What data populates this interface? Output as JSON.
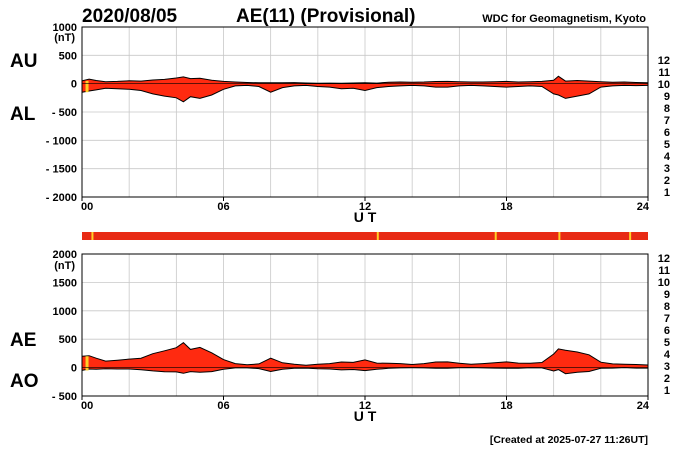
{
  "header": {
    "date": "2020/08/05",
    "title": "AE(11) (Provisional)",
    "organization": "WDC for Geomagnetism, Kyoto"
  },
  "footer": {
    "created": "[Created at 2025-07-27 11:26UT]"
  },
  "colors": {
    "fill": "#ff2a10",
    "outline": "#000000",
    "grid": "#c8c8c8",
    "marker": "#ffd028"
  },
  "legend_scale": {
    "labels": [
      "12",
      "11",
      "10",
      "9",
      "8",
      "7",
      "6",
      "5",
      "4",
      "3",
      "2",
      "1"
    ],
    "colors": [
      "#ff1e78",
      "#e0101e",
      "#ff9a00",
      "#e8e800",
      "#b4f000",
      "#28d2c8",
      "#0a8cff",
      "#2828e0",
      "#a028d2",
      "#000000",
      "#777777",
      "#cccccc"
    ]
  },
  "chart_data": [
    {
      "type": "area",
      "panel": "AU/AL",
      "labels": {
        "upper": "AU",
        "lower": "AL",
        "unit": "(nT)"
      },
      "xlabel": "U T",
      "xticks": [
        "00",
        "06",
        "12",
        "18",
        "24"
      ],
      "xlim": [
        0,
        24
      ],
      "ylim": [
        -2000,
        1000
      ],
      "yticks": [
        1000,
        500,
        0,
        -500,
        -1000,
        -1500,
        -2000
      ],
      "ytick_labels": [
        "1000",
        "500",
        "0",
        "- 500",
        "- 1000",
        "- 1500",
        "- 2000"
      ],
      "grid": true,
      "series": [
        {
          "name": "AU",
          "x": [
            0,
            0.3,
            0.6,
            1,
            1.5,
            2,
            2.5,
            3,
            3.5,
            4,
            4.3,
            4.6,
            5,
            5.5,
            6,
            6.5,
            7,
            7.5,
            8,
            8.5,
            9,
            9.5,
            10,
            10.5,
            11,
            11.5,
            12,
            12.5,
            13,
            13.5,
            14,
            14.5,
            15,
            15.5,
            16,
            16.5,
            17,
            17.5,
            18,
            18.5,
            19,
            19.5,
            20,
            20.2,
            20.5,
            21,
            21.5,
            22,
            22.5,
            23,
            23.5,
            24
          ],
          "values": [
            50,
            80,
            55,
            35,
            40,
            50,
            45,
            65,
            75,
            100,
            120,
            90,
            95,
            60,
            40,
            30,
            20,
            15,
            15,
            15,
            18,
            12,
            8,
            10,
            8,
            12,
            15,
            10,
            25,
            30,
            25,
            30,
            38,
            40,
            35,
            30,
            30,
            35,
            40,
            30,
            35,
            40,
            60,
            130,
            45,
            55,
            45,
            35,
            25,
            30,
            20,
            15
          ]
        },
        {
          "name": "AL",
          "x": [
            0,
            0.3,
            0.6,
            1,
            1.5,
            2,
            2.5,
            3,
            3.5,
            4,
            4.3,
            4.6,
            5,
            5.5,
            6,
            6.5,
            7,
            7.5,
            8,
            8.5,
            9,
            9.5,
            10,
            10.5,
            11,
            11.5,
            12,
            12.5,
            13,
            13.5,
            14,
            14.5,
            15,
            15.5,
            16,
            16.5,
            17,
            17.5,
            18,
            18.5,
            19,
            19.5,
            20,
            20.2,
            20.5,
            21,
            21.5,
            22,
            22.5,
            23,
            23.5,
            24
          ],
          "values": [
            -150,
            -130,
            -110,
            -80,
            -90,
            -100,
            -120,
            -180,
            -220,
            -250,
            -320,
            -230,
            -260,
            -200,
            -100,
            -40,
            -30,
            -50,
            -150,
            -70,
            -40,
            -30,
            -50,
            -60,
            -90,
            -80,
            -120,
            -70,
            -50,
            -40,
            -30,
            -40,
            -60,
            -60,
            -40,
            -30,
            -40,
            -50,
            -60,
            -50,
            -40,
            -50,
            -180,
            -200,
            -260,
            -220,
            -180,
            -60,
            -40,
            -30,
            -35,
            -30
          ]
        }
      ]
    },
    {
      "type": "area",
      "panel": "AE/AO",
      "labels": {
        "upper": "AE",
        "lower": "AO",
        "unit": "(nT)"
      },
      "xlabel": "U T",
      "xticks": [
        "00",
        "06",
        "12",
        "18",
        "24"
      ],
      "xlim": [
        0,
        24
      ],
      "ylim": [
        -500,
        2000
      ],
      "yticks": [
        2000,
        1500,
        1000,
        500,
        0,
        -500
      ],
      "ytick_labels": [
        "2000",
        "1500",
        "1000",
        "500",
        "0",
        "- 500"
      ],
      "grid": true,
      "series": [
        {
          "name": "AE",
          "x": [
            0,
            0.3,
            0.6,
            1,
            1.5,
            2,
            2.5,
            3,
            3.5,
            4,
            4.3,
            4.6,
            5,
            5.5,
            6,
            6.5,
            7,
            7.5,
            8,
            8.5,
            9,
            9.5,
            10,
            10.5,
            11,
            11.5,
            12,
            12.5,
            13,
            13.5,
            14,
            14.5,
            15,
            15.5,
            16,
            16.5,
            17,
            17.5,
            18,
            18.5,
            19,
            19.5,
            20,
            20.2,
            20.5,
            21,
            21.5,
            22,
            22.5,
            23,
            23.5,
            24
          ],
          "values": [
            200,
            210,
            165,
            115,
            130,
            150,
            165,
            245,
            295,
            350,
            440,
            320,
            355,
            260,
            140,
            70,
            50,
            65,
            165,
            85,
            58,
            42,
            58,
            70,
            98,
            92,
            135,
            80,
            75,
            70,
            55,
            70,
            98,
            100,
            75,
            60,
            70,
            85,
            100,
            80,
            75,
            90,
            240,
            330,
            305,
            275,
            225,
            95,
            65,
            60,
            55,
            45
          ]
        },
        {
          "name": "AO",
          "x": [
            0,
            0.3,
            0.6,
            1,
            1.5,
            2,
            2.5,
            3,
            3.5,
            4,
            4.3,
            4.6,
            5,
            5.5,
            6,
            6.5,
            7,
            7.5,
            8,
            8.5,
            9,
            9.5,
            10,
            10.5,
            11,
            11.5,
            12,
            12.5,
            13,
            13.5,
            14,
            14.5,
            15,
            15.5,
            16,
            16.5,
            17,
            17.5,
            18,
            18.5,
            19,
            19.5,
            20,
            20.2,
            20.5,
            21,
            21.5,
            22,
            22.5,
            23,
            23.5,
            24
          ],
          "values": [
            -50,
            -25,
            -28,
            -22,
            -25,
            -25,
            -38,
            -58,
            -72,
            -75,
            -100,
            -70,
            -82,
            -70,
            -30,
            -5,
            -5,
            -18,
            -68,
            -28,
            -11,
            -9,
            -21,
            -25,
            -41,
            -34,
            -53,
            -30,
            -13,
            -5,
            -3,
            -5,
            -11,
            -10,
            -3,
            0,
            -5,
            -8,
            -10,
            -10,
            -3,
            -5,
            -60,
            -35,
            -108,
            -83,
            -68,
            -13,
            -8,
            0,
            -8,
            -8
          ]
        }
      ]
    }
  ],
  "activity_bar": {
    "color": "#e82a14",
    "marker_hours": [
      0.4,
      12.5,
      17.5,
      20.2,
      23.2
    ]
  }
}
